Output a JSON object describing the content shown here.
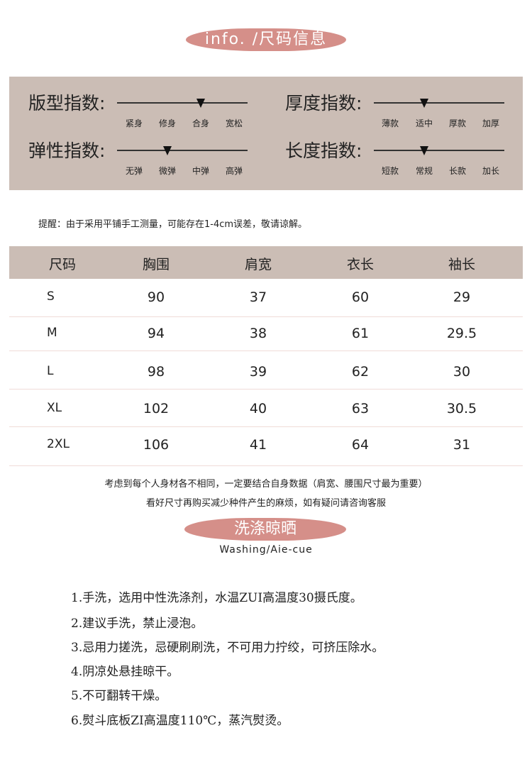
{
  "header": {
    "title": "info. /尺码信息"
  },
  "indices": [
    {
      "label": "版型指数:",
      "options": [
        "紧身",
        "修身",
        "合身",
        "宽松"
      ],
      "selected": 2
    },
    {
      "label": "厚度指数:",
      "options": [
        "薄款",
        "适中",
        "厚款",
        "加厚"
      ],
      "selected": 1
    },
    {
      "label": "弹性指数:",
      "options": [
        "无弹",
        "微弹",
        "中弹",
        "高弹"
      ],
      "selected": 1
    },
    {
      "label": "长度指数:",
      "options": [
        "短款",
        "常规",
        "长款",
        "加长"
      ],
      "selected": 1
    }
  ],
  "note": "提醒：由于采用平铺手工测量，可能存在1-4cm误差，敬请谅解。",
  "table": {
    "headers": [
      "尺码",
      "胸围",
      "肩宽",
      "衣长",
      "袖长"
    ],
    "rows": [
      [
        "S",
        "90",
        "37",
        "60",
        "29"
      ],
      [
        "M",
        "94",
        "38",
        "61",
        "29.5"
      ],
      [
        "L",
        "98",
        "39",
        "62",
        "30"
      ],
      [
        "XL",
        "102",
        "40",
        "63",
        "30.5"
      ],
      [
        "2XL",
        "106",
        "41",
        "64",
        "31"
      ]
    ]
  },
  "footer": [
    "考虑到每个人身材各不相同，一定要结合自身数据（肩宽、腰围尺寸最为重要）",
    "看好尺寸再购买减少种件产生的麻烦，如有疑问请咨询客服"
  ],
  "washing": {
    "title": "洗涤晾晒",
    "subtitle": "Washing/Aie-cue",
    "items": [
      "1.手洗，选用中性洗涤剂，水温ZUI高温度30摄氏度。",
      "2.建议手洗，禁止浸泡。",
      "3.忌用力搓洗，忌硬刷刷洗，不可用力拧绞，可挤压除水。",
      "4.阴凉处悬挂晾干。",
      "5.不可翻转干燥。",
      "6.熨斗底板ZI高温度110℃，蒸汽熨烫。"
    ]
  },
  "colors": {
    "accent": "#d58f89",
    "panel": "#cbbdb5"
  }
}
